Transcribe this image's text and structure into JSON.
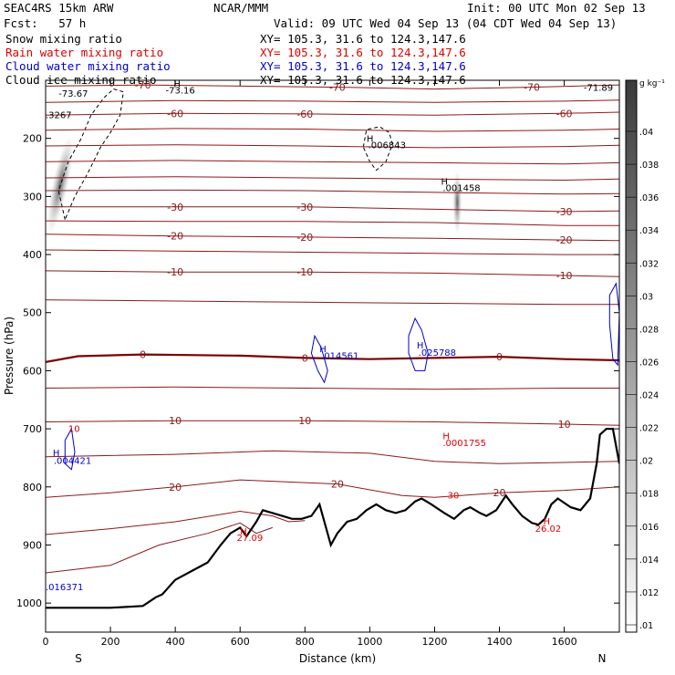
{
  "header": {
    "model": "SEAC4RS 15km ARW",
    "center": "NCAR/MMM",
    "init": "Init: 00 UTC Mon 02 Sep 13",
    "fcst": "Fcst:   57 h",
    "valid": "Valid: 09 UTC Wed 04 Sep 13 (04 CDT Wed 04 Sep 13)"
  },
  "fields": [
    {
      "name": "Snow mixing ratio",
      "xy": "XY= 105.3, 31.6 to 124.3,147.6",
      "color": "#000000"
    },
    {
      "name": "Rain water mixing ratio",
      "xy": "XY= 105.3, 31.6 to 124.3,147.6",
      "color": "#e00000"
    },
    {
      "name": "Cloud water mixing ratio",
      "xy": "XY= 105.3, 31.6 to 124.3,147.6",
      "color": "#0000cc"
    },
    {
      "name": "Cloud ice mixing ratio",
      "xy": "XY= 105.3, 31.6 to 124.3,147.6",
      "color": "#000000"
    }
  ],
  "chart_data": {
    "type": "cross-section",
    "xlabel": "Distance (km)",
    "ylabel": "Pressure (hPa)",
    "xlim": [
      0,
      1770
    ],
    "ylim": [
      1050,
      100
    ],
    "x_ticks": [
      0,
      200,
      400,
      600,
      800,
      1000,
      1200,
      1400,
      1600
    ],
    "y_ticks": [
      200,
      300,
      400,
      500,
      600,
      700,
      800,
      900,
      1000
    ],
    "x_end_labels": {
      "left": "S",
      "right": "N"
    },
    "temperature_contours": [
      {
        "value": -70,
        "label": "-70",
        "points": [
          [
            0,
            110
          ],
          [
            300,
            108
          ],
          [
            600,
            110
          ],
          [
            900,
            112
          ],
          [
            1200,
            115
          ],
          [
            1500,
            112
          ],
          [
            1770,
            108
          ]
        ]
      },
      {
        "value": -65,
        "points": [
          [
            0,
            138
          ],
          [
            400,
            135
          ],
          [
            800,
            136
          ],
          [
            1200,
            138
          ],
          [
            1600,
            136
          ],
          [
            1770,
            134
          ]
        ]
      },
      {
        "value": -60,
        "label": "-60",
        "points": [
          [
            0,
            160
          ],
          [
            400,
            157
          ],
          [
            800,
            158
          ],
          [
            1200,
            160
          ],
          [
            1600,
            157
          ],
          [
            1770,
            155
          ]
        ]
      },
      {
        "value": -55,
        "points": [
          [
            0,
            186
          ],
          [
            400,
            183
          ],
          [
            800,
            184
          ],
          [
            1200,
            188
          ],
          [
            1600,
            186
          ],
          [
            1770,
            184
          ]
        ]
      },
      {
        "value": -50,
        "points": [
          [
            0,
            213
          ],
          [
            400,
            211
          ],
          [
            800,
            213
          ],
          [
            1200,
            216
          ],
          [
            1600,
            214
          ],
          [
            1770,
            212
          ]
        ]
      },
      {
        "value": -45,
        "points": [
          [
            0,
            240
          ],
          [
            400,
            238
          ],
          [
            800,
            240
          ],
          [
            1200,
            242
          ],
          [
            1600,
            244
          ],
          [
            1770,
            242
          ]
        ]
      },
      {
        "value": -40,
        "points": [
          [
            0,
            268
          ],
          [
            400,
            266
          ],
          [
            800,
            268
          ],
          [
            1200,
            270
          ],
          [
            1600,
            272
          ],
          [
            1770,
            270
          ]
        ]
      },
      {
        "value": -35,
        "points": [
          [
            0,
            290
          ],
          [
            400,
            289
          ],
          [
            800,
            290
          ],
          [
            1200,
            293
          ],
          [
            1600,
            296
          ],
          [
            1770,
            295
          ]
        ]
      },
      {
        "value": -30,
        "label": "-30",
        "points": [
          [
            0,
            318
          ],
          [
            400,
            318
          ],
          [
            800,
            318
          ],
          [
            1200,
            322
          ],
          [
            1600,
            326
          ],
          [
            1770,
            325
          ]
        ]
      },
      {
        "value": -25,
        "points": [
          [
            0,
            342
          ],
          [
            400,
            343
          ],
          [
            800,
            343
          ],
          [
            1200,
            345
          ],
          [
            1600,
            350
          ],
          [
            1770,
            350
          ]
        ]
      },
      {
        "value": -20,
        "label": "-20",
        "points": [
          [
            0,
            365
          ],
          [
            400,
            368
          ],
          [
            800,
            370
          ],
          [
            1200,
            372
          ],
          [
            1600,
            375
          ],
          [
            1770,
            376
          ]
        ]
      },
      {
        "value": -15,
        "points": [
          [
            0,
            392
          ],
          [
            400,
            394
          ],
          [
            800,
            396
          ],
          [
            1200,
            398
          ],
          [
            1600,
            400
          ],
          [
            1770,
            400
          ]
        ]
      },
      {
        "value": -10,
        "label": "-10",
        "points": [
          [
            0,
            428
          ],
          [
            400,
            430
          ],
          [
            800,
            430
          ],
          [
            1200,
            432
          ],
          [
            1600,
            436
          ],
          [
            1770,
            438
          ]
        ]
      },
      {
        "value": -5,
        "points": [
          [
            0,
            478
          ],
          [
            400,
            480
          ],
          [
            800,
            482
          ],
          [
            1200,
            484
          ],
          [
            1600,
            486
          ],
          [
            1770,
            486
          ]
        ]
      },
      {
        "value": 0,
        "label": "0",
        "points": [
          [
            0,
            585
          ],
          [
            100,
            575
          ],
          [
            300,
            572
          ],
          [
            600,
            574
          ],
          [
            800,
            578
          ],
          [
            1000,
            580
          ],
          [
            1200,
            578
          ],
          [
            1400,
            576
          ],
          [
            1600,
            580
          ],
          [
            1770,
            582
          ]
        ]
      },
      {
        "value": 5,
        "points": [
          [
            0,
            630
          ],
          [
            400,
            628
          ],
          [
            800,
            630
          ],
          [
            1200,
            632
          ],
          [
            1600,
            630
          ],
          [
            1770,
            630
          ]
        ]
      },
      {
        "value": 10,
        "label": "10",
        "points": [
          [
            0,
            688
          ],
          [
            400,
            686
          ],
          [
            800,
            686
          ],
          [
            1200,
            688
          ],
          [
            1600,
            692
          ],
          [
            1770,
            694
          ]
        ]
      },
      {
        "value": 15,
        "points": [
          [
            0,
            748
          ],
          [
            400,
            744
          ],
          [
            700,
            738
          ],
          [
            1000,
            742
          ],
          [
            1200,
            756
          ],
          [
            1400,
            760
          ],
          [
            1600,
            758
          ],
          [
            1770,
            756
          ]
        ]
      },
      {
        "value": 20,
        "label": "20",
        "points": [
          [
            0,
            818
          ],
          [
            200,
            810
          ],
          [
            400,
            800
          ],
          [
            600,
            788
          ],
          [
            900,
            795
          ],
          [
            1100,
            815
          ],
          [
            1200,
            818
          ],
          [
            1400,
            810
          ],
          [
            1600,
            806
          ],
          [
            1770,
            800
          ]
        ]
      },
      {
        "value": 25,
        "points": [
          [
            0,
            882
          ],
          [
            200,
            872
          ],
          [
            400,
            860
          ],
          [
            600,
            842
          ],
          [
            700,
            850
          ],
          [
            750,
            860
          ],
          [
            800,
            858
          ]
        ]
      },
      {
        "value": 30,
        "points": [
          [
            0,
            948
          ],
          [
            200,
            935
          ],
          [
            350,
            900
          ],
          [
            500,
            880
          ],
          [
            600,
            862
          ],
          [
            650,
            880
          ],
          [
            700,
            870
          ]
        ]
      }
    ],
    "terrain": [
      [
        0,
        1008
      ],
      [
        100,
        1008
      ],
      [
        200,
        1008
      ],
      [
        300,
        1005
      ],
      [
        340,
        990
      ],
      [
        360,
        985
      ],
      [
        400,
        960
      ],
      [
        450,
        945
      ],
      [
        500,
        930
      ],
      [
        540,
        900
      ],
      [
        570,
        880
      ],
      [
        600,
        870
      ],
      [
        620,
        885
      ],
      [
        650,
        860
      ],
      [
        670,
        840
      ],
      [
        700,
        845
      ],
      [
        730,
        850
      ],
      [
        760,
        855
      ],
      [
        790,
        855
      ],
      [
        820,
        850
      ],
      [
        845,
        830
      ],
      [
        860,
        860
      ],
      [
        880,
        900
      ],
      [
        900,
        880
      ],
      [
        930,
        860
      ],
      [
        960,
        855
      ],
      [
        990,
        840
      ],
      [
        1020,
        830
      ],
      [
        1050,
        840
      ],
      [
        1080,
        845
      ],
      [
        1110,
        840
      ],
      [
        1140,
        825
      ],
      [
        1160,
        820
      ],
      [
        1190,
        830
      ],
      [
        1230,
        845
      ],
      [
        1260,
        855
      ],
      [
        1290,
        840
      ],
      [
        1310,
        835
      ],
      [
        1340,
        845
      ],
      [
        1360,
        850
      ],
      [
        1390,
        840
      ],
      [
        1420,
        815
      ],
      [
        1440,
        830
      ],
      [
        1470,
        850
      ],
      [
        1500,
        862
      ],
      [
        1520,
        865
      ],
      [
        1540,
        855
      ],
      [
        1560,
        830
      ],
      [
        1580,
        820
      ],
      [
        1620,
        835
      ],
      [
        1650,
        840
      ],
      [
        1680,
        820
      ],
      [
        1700,
        760
      ],
      [
        1710,
        710
      ],
      [
        1730,
        700
      ],
      [
        1750,
        700
      ],
      [
        1770,
        760
      ]
    ],
    "annotations": [
      {
        "text": "-73.67",
        "x": 40,
        "p": 128,
        "color": "#000000"
      },
      {
        "text": "-73.16",
        "x": 370,
        "p": 123,
        "color": "#000000"
      },
      {
        "text": "-71.89",
        "x": 1660,
        "p": 118,
        "color": "#000000"
      },
      {
        "text": "H",
        "x": 395,
        "p": 112,
        "color": "#000000"
      },
      {
        "text": "H",
        "x": 990,
        "p": 206,
        "color": "#000000"
      },
      {
        "text": ".006843",
        "x": 995,
        "p": 217,
        "color": "#000000"
      },
      {
        "text": "H",
        "x": 1220,
        "p": 280,
        "color": "#000000"
      },
      {
        "text": ".001458",
        "x": 1225,
        "p": 291,
        "color": "#000000"
      },
      {
        "text": ".3267",
        "x": 0,
        "p": 165,
        "color": "#000000"
      },
      {
        "text": "H",
        "x": 845,
        "p": 568,
        "color": "#0000cc"
      },
      {
        "text": ".014561",
        "x": 850,
        "p": 580,
        "color": "#0000cc"
      },
      {
        "text": "H",
        "x": 1145,
        "p": 562,
        "color": "#0000cc"
      },
      {
        "text": ".025788",
        "x": 1150,
        "p": 574,
        "color": "#0000cc"
      },
      {
        "text": "H",
        "x": 22,
        "p": 747,
        "color": "#0000cc"
      },
      {
        "text": ".004421",
        "x": 25,
        "p": 760,
        "color": "#0000cc"
      },
      {
        "text": ".016371",
        "x": 0,
        "p": 978,
        "color": "#0000cc"
      },
      {
        "text": "H",
        "x": 1225,
        "p": 718,
        "color": "#e00000"
      },
      {
        "text": ".0001755",
        "x": 1225,
        "p": 730,
        "color": "#e00000"
      },
      {
        "text": "H",
        "x": 600,
        "p": 882,
        "color": "#e00000"
      },
      {
        "text": "27.09",
        "x": 590,
        "p": 893,
        "color": "#e00000"
      },
      {
        "text": "H",
        "x": 1535,
        "p": 865,
        "color": "#e00000"
      },
      {
        "text": "26.02",
        "x": 1510,
        "p": 877,
        "color": "#e00000"
      },
      {
        "text": "30",
        "x": 1240,
        "p": 820,
        "color": "#e00000"
      },
      {
        "text": "10",
        "x": 70,
        "p": 705,
        "color": "#e00000"
      }
    ],
    "colorbar": {
      "unit": "g kg⁻¹",
      "ticks": [
        ".04",
        ".038",
        ".036",
        ".034",
        ".032",
        ".03",
        ".028",
        ".026",
        ".024",
        ".022",
        ".02",
        ".018",
        ".016",
        ".014",
        ".012",
        ".01"
      ]
    }
  }
}
